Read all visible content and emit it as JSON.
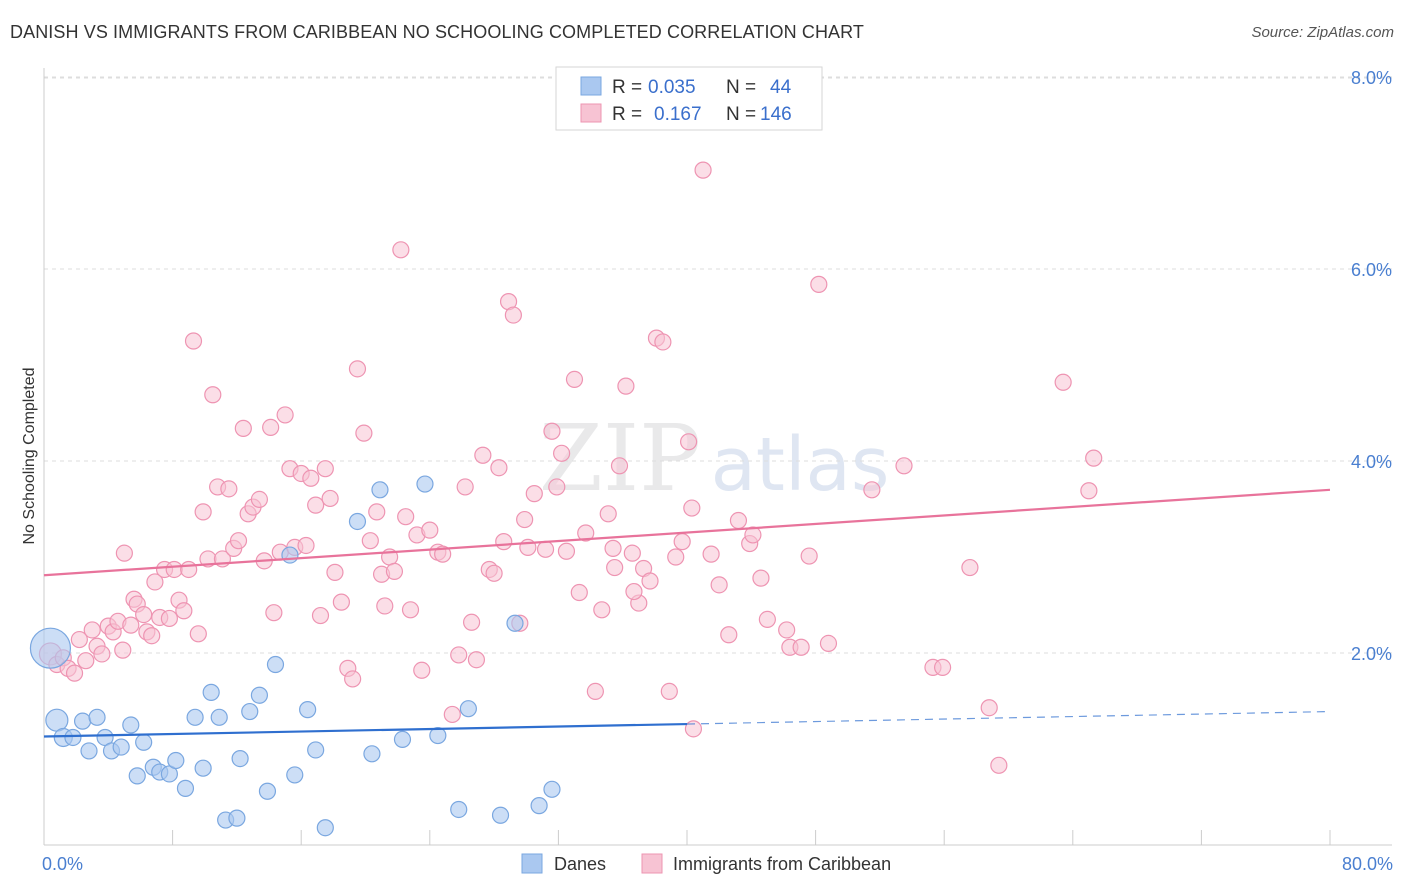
{
  "title": "DANISH VS IMMIGRANTS FROM CARIBBEAN NO SCHOOLING COMPLETED CORRELATION CHART",
  "source": "Source: ZipAtlas.com",
  "watermark": {
    "zip": "ZIP",
    "atlas": "atlas"
  },
  "colors": {
    "danes_fill": "#aac8f0",
    "danes_stroke": "#7aa7e0",
    "danes_line": "#2f6fcf",
    "carib_fill": "#f7c3d3",
    "carib_stroke": "#ee94b2",
    "carib_line": "#e8739b",
    "grid": "#dddddd",
    "axis_text": "#4a7fd0"
  },
  "legend": {
    "rows": [
      {
        "r_label": "R = ",
        "r_value": "0.035",
        "n_label": "N = ",
        "n_value": "44"
      },
      {
        "r_label": "R = ",
        "r_value": "0.167",
        "n_label": "N = ",
        "n_value": "146"
      }
    ]
  },
  "bottom_legend": [
    "Danes",
    "Immigrants from Caribbean"
  ],
  "chart_data": {
    "type": "scatter",
    "title": "DANISH VS IMMIGRANTS FROM CARIBBEAN NO SCHOOLING COMPLETED CORRELATION CHART",
    "ylabel": "No Schooling Completed",
    "xlabel": "",
    "xlim": [
      0,
      80
    ],
    "ylim": [
      0,
      8.0
    ],
    "x_tick_labels": [
      "0.0%",
      "80.0%"
    ],
    "y_tick_labels": [
      "2.0%",
      "4.0%",
      "6.0%",
      "8.0%"
    ],
    "y_ticks": [
      2,
      4,
      6,
      8
    ],
    "x_minor_ticks": [
      0,
      8,
      16,
      24,
      32,
      40,
      48,
      56,
      64,
      72,
      80
    ],
    "grid": true,
    "legend_position": "top-center",
    "series": [
      {
        "name": "Danes",
        "R": 0.035,
        "N": 44,
        "trend": {
          "x0": 0,
          "y0": 1.13,
          "x1": 40,
          "y1": 1.26,
          "dash_x1": 80,
          "dash_y1": 1.39
        },
        "points": [
          [
            0.4,
            2.05,
            20
          ],
          [
            0.8,
            1.3,
            11
          ],
          [
            1.2,
            1.12,
            9
          ],
          [
            1.8,
            1.12,
            8
          ],
          [
            2.4,
            1.29,
            8
          ],
          [
            2.8,
            0.98,
            8
          ],
          [
            3.3,
            1.33,
            8
          ],
          [
            3.8,
            1.12,
            8
          ],
          [
            4.2,
            0.98,
            8
          ],
          [
            4.8,
            1.02,
            8
          ],
          [
            5.4,
            1.25,
            8
          ],
          [
            5.8,
            0.72,
            8
          ],
          [
            6.2,
            1.07,
            8
          ],
          [
            6.8,
            0.81,
            8
          ],
          [
            7.2,
            0.76,
            8
          ],
          [
            7.8,
            0.74,
            8
          ],
          [
            8.2,
            0.88,
            8
          ],
          [
            8.8,
            0.59,
            8
          ],
          [
            9.4,
            1.33,
            8
          ],
          [
            9.9,
            0.8,
            8
          ],
          [
            10.4,
            1.59,
            8
          ],
          [
            10.9,
            1.33,
            8
          ],
          [
            11.3,
            0.26,
            8
          ],
          [
            12.0,
            0.28,
            8
          ],
          [
            12.2,
            0.9,
            8
          ],
          [
            12.8,
            1.39,
            8
          ],
          [
            13.4,
            1.56,
            8
          ],
          [
            13.9,
            0.56,
            8
          ],
          [
            14.4,
            1.88,
            8
          ],
          [
            15.6,
            0.73,
            8
          ],
          [
            16.4,
            1.41,
            8
          ],
          [
            16.9,
            0.99,
            8
          ],
          [
            17.5,
            0.18,
            8
          ],
          [
            19.5,
            3.37,
            8
          ],
          [
            20.4,
            0.95,
            8
          ],
          [
            20.9,
            3.7,
            8
          ],
          [
            22.3,
            1.1,
            8
          ],
          [
            23.7,
            3.76,
            8
          ],
          [
            24.5,
            1.14,
            8
          ],
          [
            25.8,
            0.37,
            8
          ],
          [
            26.4,
            1.42,
            8
          ],
          [
            28.4,
            0.31,
            8
          ],
          [
            29.3,
            2.31,
            8
          ],
          [
            30.8,
            0.41,
            8
          ],
          [
            31.6,
            0.58,
            8
          ],
          [
            15.3,
            3.02,
            8
          ]
        ]
      },
      {
        "name": "Immigrants from Caribbean",
        "R": 0.167,
        "N": 146,
        "trend": {
          "x0": 0,
          "y0": 2.81,
          "x1": 80,
          "y1": 3.7
        },
        "points": [
          [
            0.4,
            1.99,
            11
          ],
          [
            0.8,
            1.88,
            8
          ],
          [
            1.2,
            1.95,
            8
          ],
          [
            1.5,
            1.84,
            8
          ],
          [
            1.9,
            1.79,
            8
          ],
          [
            2.2,
            2.14,
            8
          ],
          [
            2.6,
            1.92,
            8
          ],
          [
            3.0,
            2.24,
            8
          ],
          [
            3.3,
            2.07,
            8
          ],
          [
            3.6,
            1.99,
            8
          ],
          [
            4.0,
            2.28,
            8
          ],
          [
            4.3,
            2.22,
            8
          ],
          [
            4.6,
            2.33,
            8
          ],
          [
            4.9,
            2.03,
            8
          ],
          [
            5.0,
            3.04,
            8
          ],
          [
            5.4,
            2.29,
            8
          ],
          [
            5.6,
            2.56,
            8
          ],
          [
            5.8,
            2.51,
            8
          ],
          [
            6.2,
            2.4,
            8
          ],
          [
            6.4,
            2.22,
            8
          ],
          [
            6.7,
            2.18,
            8
          ],
          [
            6.9,
            2.74,
            8
          ],
          [
            7.2,
            2.37,
            8
          ],
          [
            7.5,
            2.87,
            8
          ],
          [
            7.8,
            2.36,
            8
          ],
          [
            8.1,
            2.87,
            8
          ],
          [
            8.4,
            2.55,
            8
          ],
          [
            8.7,
            2.44,
            8
          ],
          [
            9.0,
            2.87,
            8
          ],
          [
            9.3,
            5.25,
            8
          ],
          [
            9.6,
            2.2,
            8
          ],
          [
            9.9,
            3.47,
            8
          ],
          [
            10.2,
            2.98,
            8
          ],
          [
            10.5,
            4.69,
            8
          ],
          [
            10.8,
            3.73,
            8
          ],
          [
            11.1,
            2.98,
            8
          ],
          [
            11.5,
            3.71,
            8
          ],
          [
            11.8,
            3.09,
            8
          ],
          [
            12.1,
            3.17,
            8
          ],
          [
            12.4,
            4.34,
            8
          ],
          [
            12.7,
            3.45,
            8
          ],
          [
            13.0,
            3.52,
            8
          ],
          [
            13.4,
            3.6,
            8
          ],
          [
            13.7,
            2.96,
            8
          ],
          [
            14.1,
            4.35,
            8
          ],
          [
            14.3,
            2.42,
            8
          ],
          [
            14.7,
            3.05,
            8
          ],
          [
            15.0,
            4.48,
            8
          ],
          [
            15.3,
            3.92,
            8
          ],
          [
            15.6,
            3.1,
            8
          ],
          [
            16.0,
            3.87,
            8
          ],
          [
            16.3,
            3.12,
            8
          ],
          [
            16.6,
            3.82,
            8
          ],
          [
            16.9,
            3.54,
            8
          ],
          [
            17.2,
            2.39,
            8
          ],
          [
            17.5,
            3.92,
            8
          ],
          [
            17.8,
            3.61,
            8
          ],
          [
            18.1,
            2.84,
            8
          ],
          [
            18.5,
            2.53,
            8
          ],
          [
            18.9,
            1.84,
            8
          ],
          [
            19.2,
            1.73,
            8
          ],
          [
            19.5,
            4.96,
            8
          ],
          [
            19.9,
            4.29,
            8
          ],
          [
            20.3,
            3.17,
            8
          ],
          [
            20.7,
            3.47,
            8
          ],
          [
            21.0,
            2.82,
            8
          ],
          [
            21.2,
            2.49,
            8
          ],
          [
            21.5,
            3.0,
            8
          ],
          [
            21.8,
            2.85,
            8
          ],
          [
            22.2,
            6.2,
            8
          ],
          [
            22.5,
            3.42,
            8
          ],
          [
            22.8,
            2.45,
            8
          ],
          [
            23.2,
            3.23,
            8
          ],
          [
            23.5,
            1.82,
            8
          ],
          [
            24.0,
            3.28,
            8
          ],
          [
            24.5,
            3.05,
            8
          ],
          [
            24.8,
            3.03,
            8
          ],
          [
            25.4,
            1.36,
            8
          ],
          [
            25.8,
            1.98,
            8
          ],
          [
            26.2,
            3.73,
            8
          ],
          [
            26.6,
            2.32,
            8
          ],
          [
            26.9,
            1.93,
            8
          ],
          [
            27.3,
            4.06,
            8
          ],
          [
            27.7,
            2.87,
            8
          ],
          [
            28.0,
            2.83,
            8
          ],
          [
            28.3,
            3.93,
            8
          ],
          [
            28.6,
            3.16,
            8
          ],
          [
            28.9,
            5.66,
            8
          ],
          [
            29.2,
            5.52,
            8
          ],
          [
            29.6,
            2.31,
            8
          ],
          [
            29.9,
            3.39,
            8
          ],
          [
            30.1,
            3.1,
            8
          ],
          [
            30.5,
            3.66,
            8
          ],
          [
            31.2,
            3.08,
            8
          ],
          [
            31.6,
            4.31,
            8
          ],
          [
            31.9,
            3.73,
            8
          ],
          [
            32.2,
            4.08,
            8
          ],
          [
            32.5,
            3.06,
            8
          ],
          [
            33.0,
            4.85,
            8
          ],
          [
            33.3,
            2.63,
            8
          ],
          [
            33.7,
            3.25,
            8
          ],
          [
            34.3,
            1.6,
            8
          ],
          [
            34.7,
            2.45,
            8
          ],
          [
            35.1,
            3.45,
            8
          ],
          [
            35.5,
            2.89,
            8
          ],
          [
            35.8,
            3.95,
            8
          ],
          [
            36.2,
            4.78,
            8
          ],
          [
            36.6,
            3.04,
            8
          ],
          [
            37.0,
            2.52,
            8
          ],
          [
            37.3,
            2.88,
            8
          ],
          [
            37.7,
            2.75,
            8
          ],
          [
            38.1,
            5.28,
            8
          ],
          [
            38.5,
            5.24,
            8
          ],
          [
            38.9,
            1.6,
            8
          ],
          [
            39.3,
            3.0,
            8
          ],
          [
            39.7,
            3.16,
            8
          ],
          [
            40.1,
            4.2,
            8
          ],
          [
            40.4,
            1.21,
            8
          ],
          [
            41.0,
            7.03,
            8
          ],
          [
            41.5,
            3.03,
            8
          ],
          [
            42.0,
            2.71,
            8
          ],
          [
            42.6,
            2.19,
            8
          ],
          [
            43.2,
            3.38,
            8
          ],
          [
            43.9,
            3.14,
            8
          ],
          [
            44.1,
            3.23,
            8
          ],
          [
            44.6,
            2.78,
            8
          ],
          [
            45.0,
            2.35,
            8
          ],
          [
            46.4,
            2.06,
            8
          ],
          [
            47.1,
            2.06,
            8
          ],
          [
            47.6,
            3.01,
            8
          ],
          [
            48.2,
            5.84,
            8
          ],
          [
            48.8,
            2.1,
            8
          ],
          [
            51.5,
            3.7,
            8
          ],
          [
            53.5,
            3.95,
            8
          ],
          [
            55.3,
            1.85,
            8
          ],
          [
            55.9,
            1.85,
            8
          ],
          [
            57.6,
            2.89,
            8
          ],
          [
            58.8,
            1.43,
            8
          ],
          [
            59.4,
            0.83,
            8
          ],
          [
            63.4,
            4.82,
            8
          ],
          [
            65.0,
            3.69,
            8
          ],
          [
            65.3,
            4.03,
            8
          ],
          [
            40.3,
            3.51,
            8
          ],
          [
            35.4,
            3.09,
            8
          ],
          [
            46.2,
            2.24,
            8
          ],
          [
            36.7,
            2.64,
            8
          ]
        ]
      }
    ]
  }
}
